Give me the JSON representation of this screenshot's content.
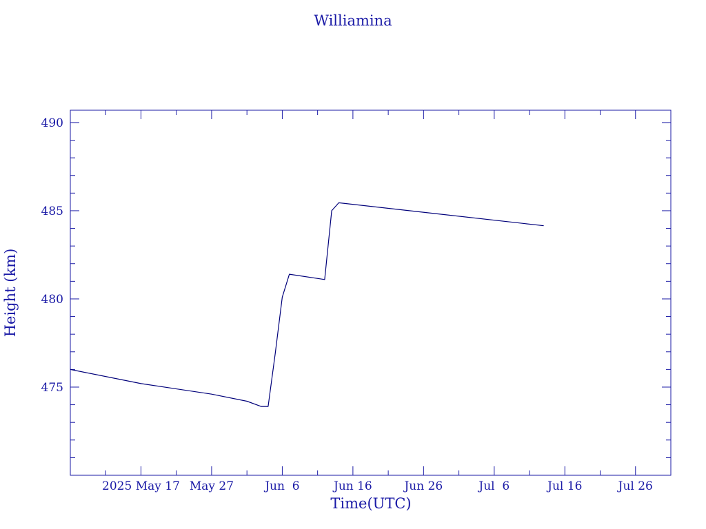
{
  "chart_data": {
    "type": "line",
    "title": "Williamina",
    "xlabel": "Time(UTC)",
    "ylabel": "Height (km)",
    "colors": {
      "axis": "#1a1aa6",
      "line": "#00007a",
      "text": "#1a1aa6"
    },
    "x_is_date": true,
    "xlim": [
      "2025-05-07",
      "2025-07-31"
    ],
    "ylim": [
      470,
      490.7
    ],
    "x_ticks": [
      {
        "date": "2025-05-17",
        "label": "2025 May 17"
      },
      {
        "date": "2025-05-27",
        "label": "May 27"
      },
      {
        "date": "2025-06-06",
        "label": "Jun  6"
      },
      {
        "date": "2025-06-16",
        "label": "Jun 16"
      },
      {
        "date": "2025-06-26",
        "label": "Jun 26"
      },
      {
        "date": "2025-07-06",
        "label": "Jul  6"
      },
      {
        "date": "2025-07-16",
        "label": "Jul 16"
      },
      {
        "date": "2025-07-26",
        "label": "Jul 26"
      }
    ],
    "y_ticks": [
      475,
      480,
      485,
      490
    ],
    "series": [
      {
        "x": [
          "2025-05-07",
          "2025-05-17",
          "2025-05-27",
          "2025-06-01",
          "2025-06-03",
          "2025-06-04",
          "2025-06-05",
          "2025-06-06",
          "2025-06-07",
          "2025-06-12",
          "2025-06-13",
          "2025-06-14",
          "2025-07-13"
        ],
        "y": [
          476.0,
          475.2,
          474.6,
          474.2,
          473.9,
          473.9,
          476.9,
          480.1,
          481.4,
          481.1,
          485.0,
          485.45,
          484.15
        ]
      }
    ]
  }
}
